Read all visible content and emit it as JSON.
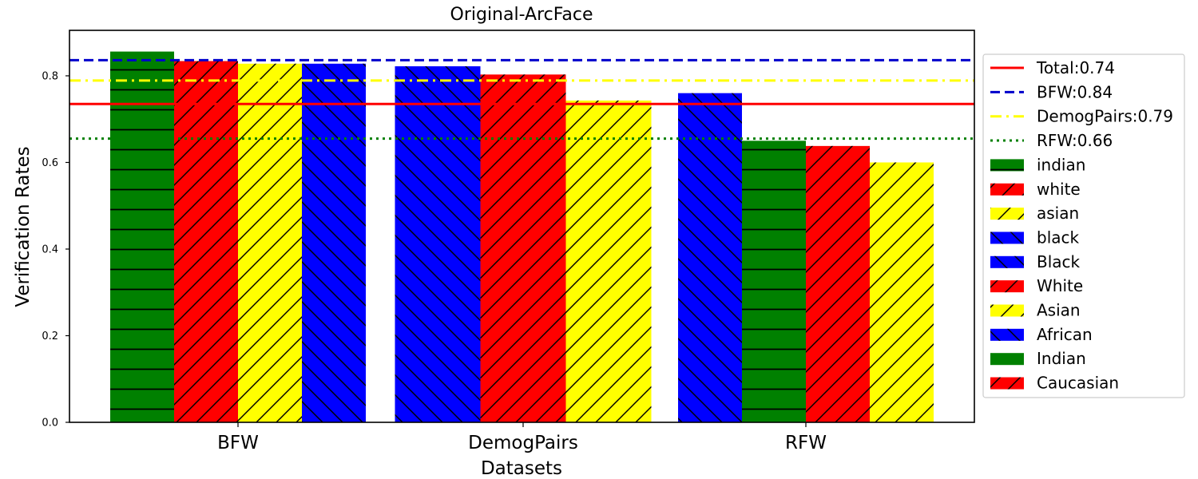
{
  "chart_data": {
    "type": "bar",
    "title": "Original-ArcFace",
    "xlabel": "Datasets",
    "ylabel": "Verification Rates",
    "ylim": [
      0,
      0.905
    ],
    "yticks": [
      0.0,
      0.2,
      0.4,
      0.6,
      0.8
    ],
    "ytick_labels": [
      "0.0",
      "0.2",
      "0.4",
      "0.6",
      "0.8"
    ],
    "categories": [
      "BFW",
      "DemogPairs",
      "RFW"
    ],
    "groups": [
      {
        "category": "BFW",
        "bars": [
          {
            "name": "indian",
            "value": 0.856,
            "color": "#008000",
            "hatch": "horizontal"
          },
          {
            "name": "white",
            "value": 0.834,
            "color": "#ff0000",
            "hatch": "slash"
          },
          {
            "name": "asian",
            "value": 0.828,
            "color": "#ffff00",
            "hatch": "slash"
          },
          {
            "name": "black",
            "value": 0.828,
            "color": "#0000ff",
            "hatch": "backslash"
          }
        ]
      },
      {
        "category": "DemogPairs",
        "bars": [
          {
            "name": "Black",
            "value": 0.822,
            "color": "#0000ff",
            "hatch": "backslash"
          },
          {
            "name": "White",
            "value": 0.803,
            "color": "#ff0000",
            "hatch": "slash"
          },
          {
            "name": "Asian",
            "value": 0.743,
            "color": "#ffff00",
            "hatch": "slash"
          }
        ]
      },
      {
        "category": "RFW",
        "bars": [
          {
            "name": "African",
            "value": 0.76,
            "color": "#0000ff",
            "hatch": "backslash"
          },
          {
            "name": "Indian",
            "value": 0.65,
            "color": "#008000",
            "hatch": "horizontal"
          },
          {
            "name": "Caucasian",
            "value": 0.638,
            "color": "#ff0000",
            "hatch": "slash"
          },
          {
            "name": "Asian",
            "value": 0.6,
            "color": "#ffff00",
            "hatch": "slash"
          }
        ]
      }
    ],
    "reference_lines": [
      {
        "name": "Total:0.74",
        "value": 0.735,
        "color": "#ff0000",
        "style": "solid"
      },
      {
        "name": "BFW:0.84",
        "value": 0.836,
        "color": "#0000cc",
        "style": "dashed"
      },
      {
        "name": "DemogPairs:0.79",
        "value": 0.789,
        "color": "#ffff00",
        "style": "dashdot"
      },
      {
        "name": "RFW:0.66",
        "value": 0.655,
        "color": "#008000",
        "style": "dotted"
      }
    ],
    "legend": {
      "placement": "outside-right",
      "entries": [
        {
          "label": "Total:0.74",
          "kind": "line",
          "color": "#ff0000",
          "style": "solid"
        },
        {
          "label": "BFW:0.84",
          "kind": "line",
          "color": "#0000cc",
          "style": "dashed"
        },
        {
          "label": "DemogPairs:0.79",
          "kind": "line",
          "color": "#ffff00",
          "style": "dashdot"
        },
        {
          "label": "RFW:0.66",
          "kind": "line",
          "color": "#008000",
          "style": "dotted"
        },
        {
          "label": "indian",
          "kind": "patch",
          "color": "#008000",
          "hatch": "horizontal"
        },
        {
          "label": "white",
          "kind": "patch",
          "color": "#ff0000",
          "hatch": "slash"
        },
        {
          "label": "asian",
          "kind": "patch",
          "color": "#ffff00",
          "hatch": "slash"
        },
        {
          "label": "black",
          "kind": "patch",
          "color": "#0000ff",
          "hatch": "backslash"
        },
        {
          "label": "Black",
          "kind": "patch",
          "color": "#0000ff",
          "hatch": "backslash"
        },
        {
          "label": "White",
          "kind": "patch",
          "color": "#ff0000",
          "hatch": "slash"
        },
        {
          "label": "Asian",
          "kind": "patch",
          "color": "#ffff00",
          "hatch": "slash"
        },
        {
          "label": "African",
          "kind": "patch",
          "color": "#0000ff",
          "hatch": "backslash"
        },
        {
          "label": "Indian",
          "kind": "patch",
          "color": "#008000",
          "hatch": "horizontal"
        },
        {
          "label": "Caucasian",
          "kind": "patch",
          "color": "#ff0000",
          "hatch": "slash"
        }
      ]
    },
    "grid": false
  }
}
